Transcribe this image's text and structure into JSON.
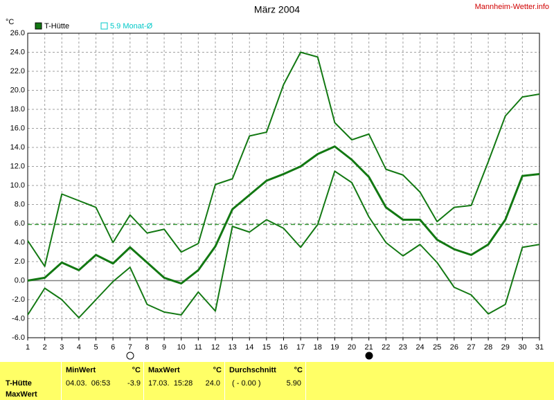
{
  "chart_data": {
    "type": "line",
    "title": "März 2004",
    "source": "Mannheim-Wetter.info",
    "y_unit": "°C",
    "x": [
      1,
      2,
      3,
      4,
      5,
      6,
      7,
      8,
      9,
      10,
      11,
      12,
      13,
      14,
      15,
      16,
      17,
      18,
      19,
      20,
      21,
      22,
      23,
      24,
      25,
      26,
      27,
      28,
      29,
      30,
      31
    ],
    "xlim": [
      1,
      31
    ],
    "xticks": [
      1,
      2,
      3,
      4,
      5,
      6,
      7,
      8,
      9,
      10,
      11,
      12,
      13,
      14,
      15,
      16,
      17,
      18,
      19,
      20,
      21,
      22,
      23,
      24,
      25,
      26,
      27,
      28,
      29,
      30,
      31
    ],
    "ylim": [
      -6,
      26
    ],
    "yticks": [
      {
        "value": -6,
        "label": "-6.0"
      },
      {
        "value": -4,
        "label": "-4.0"
      },
      {
        "value": -2,
        "label": "-2.0"
      },
      {
        "value": 0,
        "label": "0.0"
      },
      {
        "value": 2,
        "label": "2.0"
      },
      {
        "value": 4,
        "label": "4.0"
      },
      {
        "value": 6,
        "label": "6.0"
      },
      {
        "value": 8,
        "label": "8.0"
      },
      {
        "value": 10,
        "label": "10.0"
      },
      {
        "value": 12,
        "label": "12.0"
      },
      {
        "value": 14,
        "label": "14.0"
      },
      {
        "value": 16,
        "label": "16.0"
      },
      {
        "value": 18,
        "label": "18.0"
      },
      {
        "value": 20,
        "label": "20.0"
      },
      {
        "value": 22,
        "label": "22.0"
      },
      {
        "value": 24,
        "label": "24.0"
      },
      {
        "value": 26,
        "label": "26.0"
      }
    ],
    "grid": true,
    "zero_line": true,
    "series": [
      {
        "name": "T-Hütte",
        "color": "#127812",
        "width": 3,
        "values": [
          0.0,
          0.3,
          1.9,
          1.1,
          2.7,
          1.8,
          3.5,
          1.9,
          0.3,
          -0.3,
          1.1,
          3.6,
          7.5,
          9.0,
          10.5,
          11.2,
          12.0,
          13.3,
          14.1,
          12.7,
          10.9,
          7.7,
          6.4,
          6.4,
          4.3,
          3.3,
          2.7,
          3.8,
          6.4,
          11.0,
          11.2
        ]
      },
      {
        "color": "#127812",
        "width": 2,
        "values": [
          4.2,
          1.5,
          9.1,
          8.4,
          7.7,
          4.0,
          6.9,
          5.0,
          5.4,
          3.0,
          3.9,
          10.1,
          10.7,
          15.2,
          15.6,
          20.6,
          24.0,
          23.5,
          16.6,
          14.8,
          15.4,
          11.7,
          11.1,
          9.3,
          6.2,
          7.7,
          7.9,
          12.5,
          17.3,
          19.3,
          19.6
        ]
      },
      {
        "color": "#127812",
        "width": 2,
        "values": [
          -3.6,
          -0.8,
          -2.0,
          -3.9,
          -2.0,
          -0.1,
          1.4,
          -2.5,
          -3.3,
          -3.6,
          -1.2,
          -3.2,
          5.7,
          5.1,
          6.4,
          5.5,
          3.5,
          5.9,
          11.5,
          10.3,
          6.7,
          4.0,
          2.6,
          3.8,
          1.9,
          -0.7,
          -1.5,
          -3.5,
          -2.5,
          3.5,
          3.8
        ]
      }
    ],
    "reference_line": {
      "value": 5.9,
      "label": "5.9 Monat-Ø",
      "color": "#00c8c8",
      "line_color": "#3a9a3a"
    }
  },
  "summary": {
    "row_labels": [
      "T-Hütte",
      "MaxWert"
    ],
    "columns": [
      {
        "title": "MinWert",
        "unit": "°C",
        "when": "04.03.  06:53",
        "value": "-3.9"
      },
      {
        "title": "MaxWert",
        "unit": "°C",
        "when": "17.03.  15:28",
        "value": "24.0"
      },
      {
        "title": "Durchschnitt",
        "unit": "°C",
        "when": "( - 0.00 )",
        "value": "5.90"
      }
    ]
  }
}
